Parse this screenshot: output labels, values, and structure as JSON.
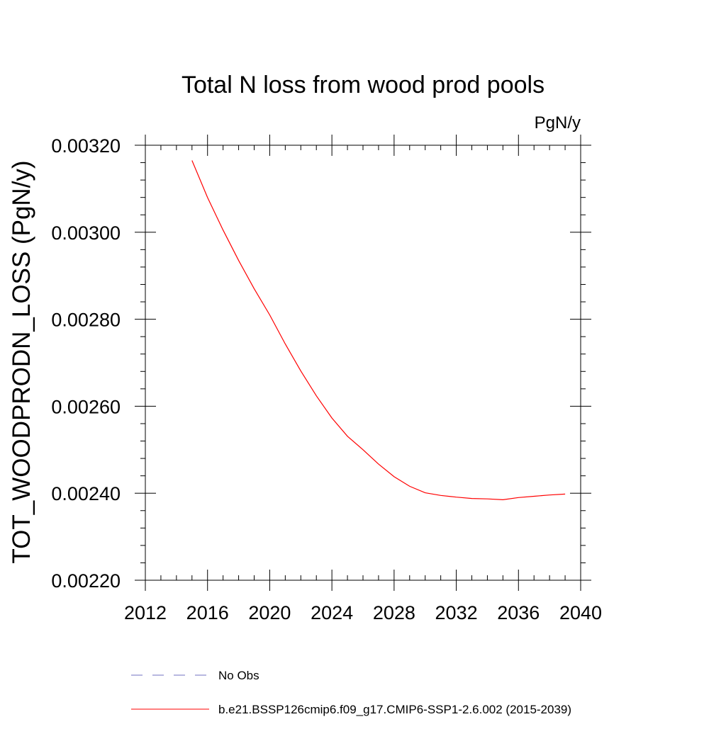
{
  "chart_data": {
    "type": "line",
    "title": "Total N loss from wood prod pools",
    "units_label": "PgN/y",
    "ylabel": "TOT_WOODPRODN_LOSS  (PgN/y)",
    "xlabel": "",
    "xlim": [
      2012,
      2040
    ],
    "ylim": [
      0.0022,
      0.0032
    ],
    "x_ticks": [
      2012,
      2016,
      2020,
      2024,
      2028,
      2032,
      2036,
      2040
    ],
    "x_tick_labels": [
      "2012",
      "2016",
      "2020",
      "2024",
      "2028",
      "2032",
      "2036",
      "2040"
    ],
    "y_ticks": [
      0.0022,
      0.0024,
      0.0026,
      0.0028,
      0.003,
      0.0032
    ],
    "y_tick_labels": [
      "0.00220",
      "0.00240",
      "0.00260",
      "0.00280",
      "0.00300",
      "0.00320"
    ],
    "grid": false,
    "series": [
      {
        "name": "b.e21.BSSP126cmip6.f09_g17.CMIP6-SSP1-2.6.002 (2015-2039)",
        "color": "#ff0000",
        "dash": "solid",
        "x": [
          2015,
          2016,
          2017,
          2018,
          2019,
          2020,
          2021,
          2022,
          2023,
          2024,
          2025,
          2026,
          2027,
          2028,
          2029,
          2030,
          2031,
          2032,
          2033,
          2034,
          2035,
          2036,
          2037,
          2038,
          2039
        ],
        "values": [
          0.003165,
          0.00308,
          0.003005,
          0.002935,
          0.00287,
          0.00281,
          0.002743,
          0.002681,
          0.002624,
          0.002573,
          0.002531,
          0.0025,
          0.002467,
          0.002438,
          0.002416,
          0.002401,
          0.002395,
          0.002391,
          0.002388,
          0.002387,
          0.002385,
          0.00239,
          0.002393,
          0.002396,
          0.002398
        ]
      }
    ],
    "legend": {
      "placement": "bottom",
      "entries": [
        {
          "label": "No Obs",
          "color": "#7070c0",
          "dash": "dashed"
        },
        {
          "label": "b.e21.BSSP126cmip6.f09_g17.CMIP6-SSP1-2.6.002 (2015-2039)",
          "color": "#ff0000",
          "dash": "solid"
        }
      ]
    }
  }
}
